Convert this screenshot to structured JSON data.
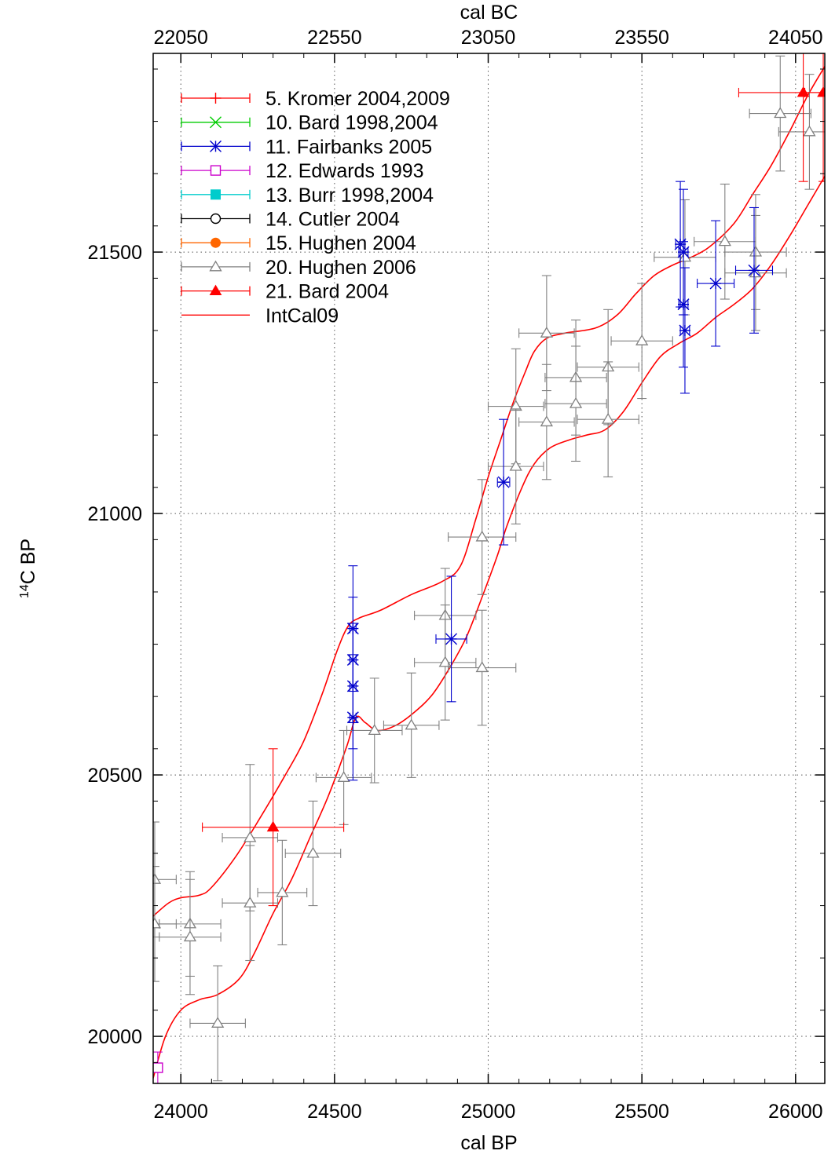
{
  "chart_data": {
    "type": "scatter",
    "title": "",
    "xlabel_bottom": "cal BP",
    "xlabel_top": "cal BC",
    "ylabel": "C BP",
    "ylabel_superscript": "14",
    "xlim": [
      23910,
      26095
    ],
    "ylim": [
      19910,
      21880
    ],
    "top_axis_offset": 1950,
    "x_ticks": [
      24000,
      24500,
      25000,
      25500,
      26000
    ],
    "x_top_ticks": [
      22050,
      22550,
      23050,
      23550,
      24050
    ],
    "y_ticks": [
      20000,
      20500,
      21000,
      21500
    ],
    "grid": "dotted",
    "legend_position": "top-left",
    "colors": {
      "kromer": "#ff0000",
      "bard1998": "#00cc00",
      "fairbanks": "#0000cc",
      "edwards": "#cc00cc",
      "burr": "#00cccc",
      "cutler": "#000000",
      "hughen2004": "#ff6600",
      "hughen2006": "#808080",
      "bard2004": "#ff0000",
      "intcal": "#ff0000"
    },
    "legend": [
      {
        "key": "kromer",
        "label": "5. Kromer 2004,2009",
        "marker": "plus"
      },
      {
        "key": "bard1998",
        "label": "10. Bard 1998,2004",
        "marker": "cross"
      },
      {
        "key": "fairbanks",
        "label": "11. Fairbanks 2005",
        "marker": "star"
      },
      {
        "key": "edwards",
        "label": "12. Edwards 1993",
        "marker": "square-open"
      },
      {
        "key": "burr",
        "label": "13. Burr 1998,2004",
        "marker": "square-filled"
      },
      {
        "key": "cutler",
        "label": "14. Cutler 2004",
        "marker": "circle-open"
      },
      {
        "key": "hughen2004",
        "label": "15. Hughen 2004",
        "marker": "circle-filled"
      },
      {
        "key": "hughen2006",
        "label": "20. Hughen 2006",
        "marker": "triangle-open"
      },
      {
        "key": "bard2004",
        "label": "21. Bard 2004",
        "marker": "triangle-filled"
      },
      {
        "key": "intcal",
        "label": "IntCal09",
        "marker": "line"
      }
    ],
    "series": [
      {
        "key": "hughen2006",
        "points": [
          {
            "x": 23915,
            "y": 20300,
            "xe": 70,
            "ye": 110
          },
          {
            "x": 23915,
            "y": 20215,
            "xe": 70,
            "ye": 110
          },
          {
            "x": 24030,
            "y": 20215,
            "xe": 100,
            "ye": 100
          },
          {
            "x": 24030,
            "y": 20190,
            "xe": 100,
            "ye": 110
          },
          {
            "x": 24120,
            "y": 20025,
            "xe": 90,
            "ye": 110
          },
          {
            "x": 24225,
            "y": 20380,
            "xe": 90,
            "ye": 140
          },
          {
            "x": 24225,
            "y": 20255,
            "xe": 90,
            "ye": 110
          },
          {
            "x": 24330,
            "y": 20275,
            "xe": 80,
            "ye": 100
          },
          {
            "x": 24430,
            "y": 20350,
            "xe": 90,
            "ye": 100
          },
          {
            "x": 24530,
            "y": 20495,
            "xe": 90,
            "ye": 90
          },
          {
            "x": 24630,
            "y": 20585,
            "xe": 90,
            "ye": 100
          },
          {
            "x": 24750,
            "y": 20595,
            "xe": 90,
            "ye": 100
          },
          {
            "x": 24860,
            "y": 20805,
            "xe": 100,
            "ye": 90
          },
          {
            "x": 24860,
            "y": 20715,
            "xe": 100,
            "ye": 110
          },
          {
            "x": 24980,
            "y": 20955,
            "xe": 110,
            "ye": 110
          },
          {
            "x": 24980,
            "y": 20705,
            "xe": 110,
            "ye": 110
          },
          {
            "x": 25090,
            "y": 21205,
            "xe": 90,
            "ye": 110
          },
          {
            "x": 25090,
            "y": 21090,
            "xe": 90,
            "ye": 110
          },
          {
            "x": 25190,
            "y": 21345,
            "xe": 90,
            "ye": 110
          },
          {
            "x": 25190,
            "y": 21175,
            "xe": 90,
            "ye": 110
          },
          {
            "x": 25285,
            "y": 21260,
            "xe": 100,
            "ye": 110
          },
          {
            "x": 25285,
            "y": 21210,
            "xe": 100,
            "ye": 110
          },
          {
            "x": 25390,
            "y": 21280,
            "xe": 100,
            "ye": 110
          },
          {
            "x": 25390,
            "y": 21180,
            "xe": 100,
            "ye": 110
          },
          {
            "x": 25500,
            "y": 21330,
            "xe": 100,
            "ye": 110
          },
          {
            "x": 25640,
            "y": 21490,
            "xe": 100,
            "ye": 110
          },
          {
            "x": 25770,
            "y": 21520,
            "xe": 100,
            "ye": 110
          },
          {
            "x": 25870,
            "y": 21500,
            "xe": 100,
            "ye": 110
          },
          {
            "x": 25870,
            "y": 21460,
            "xe": 100,
            "ye": 110
          },
          {
            "x": 25950,
            "y": 21765,
            "xe": 100,
            "ye": 110
          },
          {
            "x": 26045,
            "y": 21730,
            "xe": 100,
            "ye": 110
          }
        ]
      },
      {
        "key": "fairbanks",
        "points": [
          {
            "x": 24560,
            "y": 20780,
            "xe": 10,
            "ye": 120
          },
          {
            "x": 24560,
            "y": 20720,
            "xe": 10,
            "ye": 120
          },
          {
            "x": 24560,
            "y": 20670,
            "xe": 10,
            "ye": 120
          },
          {
            "x": 24560,
            "y": 20610,
            "xe": 10,
            "ye": 120
          },
          {
            "x": 24880,
            "y": 20760,
            "xe": 50,
            "ye": 120
          },
          {
            "x": 25050,
            "y": 21060,
            "xe": 20,
            "ye": 120
          },
          {
            "x": 25625,
            "y": 21515,
            "xe": 15,
            "ye": 120
          },
          {
            "x": 25635,
            "y": 21500,
            "xe": 15,
            "ye": 120
          },
          {
            "x": 25635,
            "y": 21400,
            "xe": 15,
            "ye": 120
          },
          {
            "x": 25640,
            "y": 21350,
            "xe": 15,
            "ye": 120
          },
          {
            "x": 25740,
            "y": 21440,
            "xe": 60,
            "ye": 120
          },
          {
            "x": 25865,
            "y": 21465,
            "xe": 60,
            "ye": 120
          }
        ]
      },
      {
        "key": "bard2004",
        "points": [
          {
            "x": 24300,
            "y": 20400,
            "xe": 230,
            "ye": 150
          },
          {
            "x": 26025,
            "y": 21805,
            "xe": 210,
            "ye": 170
          },
          {
            "x": 26090,
            "y": 21805,
            "xe": 60,
            "ye": 170
          }
        ]
      },
      {
        "key": "edwards",
        "points": [
          {
            "x": 23925,
            "y": 19940,
            "xe": 15,
            "ye": 30
          }
        ]
      }
    ],
    "intcal09": {
      "upper": [
        [
          23910,
          20230
        ],
        [
          23960,
          20255
        ],
        [
          24000,
          20265
        ],
        [
          24060,
          20270
        ],
        [
          24100,
          20285
        ],
        [
          24180,
          20345
        ],
        [
          24260,
          20420
        ],
        [
          24340,
          20500
        ],
        [
          24400,
          20565
        ],
        [
          24460,
          20655
        ],
        [
          24510,
          20740
        ],
        [
          24545,
          20785
        ],
        [
          24580,
          20800
        ],
        [
          24650,
          20815
        ],
        [
          24750,
          20845
        ],
        [
          24850,
          20870
        ],
        [
          24910,
          20900
        ],
        [
          24960,
          20990
        ],
        [
          25000,
          21070
        ],
        [
          25040,
          21140
        ],
        [
          25080,
          21210
        ],
        [
          25120,
          21270
        ],
        [
          25150,
          21310
        ],
        [
          25190,
          21335
        ],
        [
          25250,
          21345
        ],
        [
          25350,
          21355
        ],
        [
          25420,
          21380
        ],
        [
          25480,
          21420
        ],
        [
          25540,
          21455
        ],
        [
          25600,
          21475
        ],
        [
          25660,
          21490
        ],
        [
          25720,
          21510
        ],
        [
          25800,
          21555
        ],
        [
          25860,
          21610
        ],
        [
          25920,
          21665
        ],
        [
          25980,
          21730
        ],
        [
          26040,
          21800
        ],
        [
          26095,
          21855
        ]
      ],
      "lower": [
        [
          23910,
          19920
        ],
        [
          23950,
          20000
        ],
        [
          24000,
          20050
        ],
        [
          24060,
          20070
        ],
        [
          24120,
          20080
        ],
        [
          24190,
          20110
        ],
        [
          24240,
          20160
        ],
        [
          24300,
          20235
        ],
        [
          24360,
          20300
        ],
        [
          24420,
          20380
        ],
        [
          24480,
          20460
        ],
        [
          24540,
          20555
        ],
        [
          24570,
          20610
        ],
        [
          24600,
          20600
        ],
        [
          24640,
          20585
        ],
        [
          24700,
          20595
        ],
        [
          24760,
          20620
        ],
        [
          24820,
          20655
        ],
        [
          24880,
          20710
        ],
        [
          24930,
          20765
        ],
        [
          24980,
          20840
        ],
        [
          25030,
          20920
        ],
        [
          25060,
          20975
        ],
        [
          25110,
          21050
        ],
        [
          25150,
          21095
        ],
        [
          25200,
          21125
        ],
        [
          25260,
          21140
        ],
        [
          25320,
          21150
        ],
        [
          25380,
          21160
        ],
        [
          25440,
          21195
        ],
        [
          25500,
          21250
        ],
        [
          25560,
          21300
        ],
        [
          25620,
          21325
        ],
        [
          25680,
          21345
        ],
        [
          25740,
          21375
        ],
        [
          25800,
          21400
        ],
        [
          25860,
          21430
        ],
        [
          25920,
          21475
        ],
        [
          25980,
          21530
        ],
        [
          26040,
          21590
        ],
        [
          26095,
          21645
        ]
      ]
    }
  }
}
